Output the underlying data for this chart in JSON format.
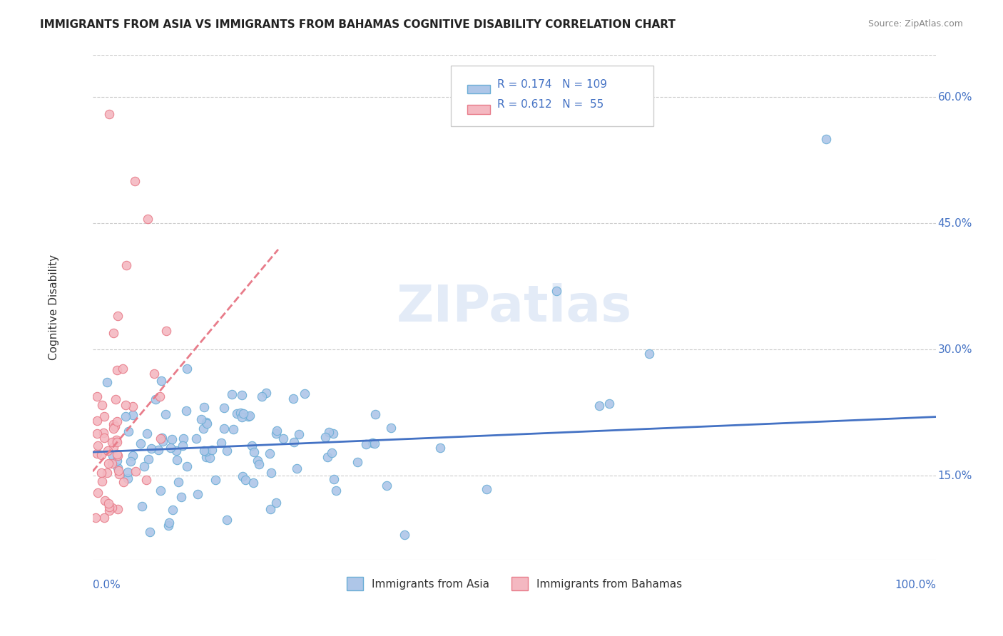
{
  "title": "IMMIGRANTS FROM ASIA VS IMMIGRANTS FROM BAHAMAS COGNITIVE DISABILITY CORRELATION CHART",
  "source_text": "Source: ZipAtlas.com",
  "xlabel": "",
  "ylabel": "Cognitive Disability",
  "xlim": [
    0,
    1
  ],
  "ylim": [
    0.05,
    0.65
  ],
  "yticks": [
    0.15,
    0.3,
    0.45,
    0.6
  ],
  "ytick_labels": [
    "15.0%",
    "30.0%",
    "45.0%",
    "60.0%"
  ],
  "xticks": [
    0.0,
    1.0
  ],
  "xtick_labels": [
    "0.0%",
    "100.0%"
  ],
  "legend_entries": [
    {
      "label": "R = 0.174   N = 109",
      "color": "#aec6e8"
    },
    {
      "label": "R = 0.612   N =  55",
      "color": "#f4b8c1"
    }
  ],
  "series_asia": {
    "color": "#aec6e8",
    "edge_color": "#6baed6",
    "R": 0.174,
    "N": 109,
    "trend_color": "#4472c4",
    "trend_intercept": 0.178,
    "trend_slope": 0.042
  },
  "series_bahamas": {
    "color": "#f4b8c1",
    "edge_color": "#e87c8a",
    "R": 0.612,
    "N": 55,
    "trend_color": "#e87c8a",
    "trend_intercept": 0.155,
    "trend_slope": 1.2
  },
  "watermark": "ZIPatlas",
  "watermark_color": "#c8d8f0",
  "background_color": "#ffffff",
  "title_fontsize": 11,
  "axis_color": "#4472c4",
  "grid_color": "#cccccc"
}
